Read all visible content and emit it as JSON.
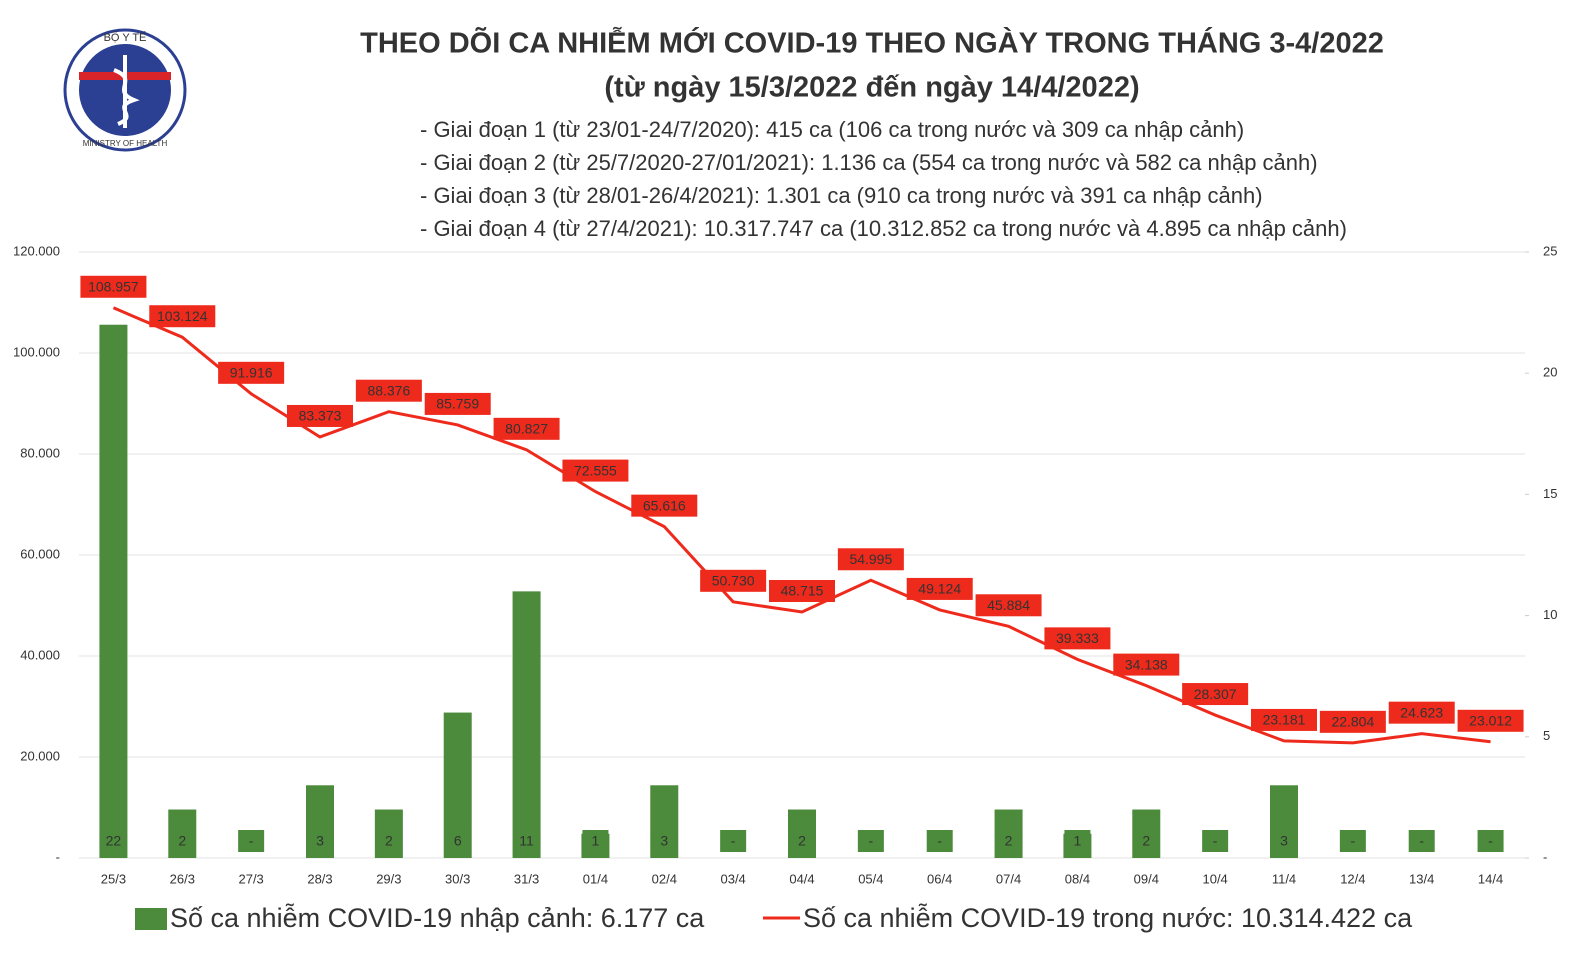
{
  "logo": {
    "top": "BỘ Y TẾ",
    "bottom": "MINISTRY OF HEALTH"
  },
  "chart_data": {
    "type": "combo",
    "title": "THEO DÕI CA NHIỄM MỚI COVID-19 THEO NGÀY TRONG THÁNG 3-4/2022",
    "subtitle": "(từ ngày 15/3/2022 đến ngày 14/4/2022)",
    "annotations": [
      "- Giai đoạn 1 (từ 23/01-24/7/2020): 415 ca (106 ca trong nước và 309 ca nhập cảnh)",
      "- Giai đoạn 2 (từ 25/7/2020-27/01/2021): 1.136 ca (554 ca trong nước và 582 ca nhập cảnh)",
      "- Giai đoạn 3 (từ 28/01-26/4/2021): 1.301 ca (910 ca trong nước và 391 ca nhập cảnh)",
      "- Giai đoạn 4 (từ 27/4/2021): 10.317.747 ca (10.312.852 ca trong nước và 4.895 ca nhập cảnh)"
    ],
    "categories": [
      "25/3",
      "26/3",
      "27/3",
      "28/3",
      "29/3",
      "30/3",
      "31/3",
      "01/4",
      "02/4",
      "03/4",
      "04/4",
      "05/4",
      "06/4",
      "07/4",
      "08/4",
      "09/4",
      "10/4",
      "11/4",
      "12/4",
      "13/4",
      "14/4"
    ],
    "series": [
      {
        "name": "Số ca nhiễm COVID-19 nhập cảnh: 6.177 ca",
        "type": "bar",
        "axis": "y2",
        "color": "#4b8b3b",
        "values": [
          22,
          2,
          0,
          3,
          2,
          6,
          11,
          1,
          3,
          0,
          2,
          0,
          0,
          2,
          1,
          2,
          0,
          3,
          0,
          0,
          0
        ],
        "value_labels": [
          "22",
          "2",
          "-",
          "3",
          "2",
          "6",
          "11",
          "1",
          "3",
          "-",
          "2",
          "-",
          "-",
          "2",
          "1",
          "2",
          "-",
          "3",
          "-",
          "-",
          "-"
        ]
      },
      {
        "name": "Số ca nhiễm COVID-19 trong nước: 10.314.422 ca",
        "type": "line",
        "color": "#ee2a1c",
        "values": [
          108957,
          103124,
          91916,
          83373,
          88376,
          85759,
          80827,
          72555,
          65616,
          50730,
          48715,
          54995,
          49124,
          45884,
          39333,
          34138,
          28307,
          23181,
          22804,
          24623,
          23012
        ],
        "value_labels": [
          "108.957",
          "103.124",
          "91.916",
          "83.373",
          "88.376",
          "85.759",
          "80.827",
          "72.555",
          "65.616",
          "50.730",
          "48.715",
          "54.995",
          "49.124",
          "45.884",
          "39.333",
          "34.138",
          "28.307",
          "23.181",
          "22.804",
          "24.623",
          "23.012"
        ]
      }
    ],
    "ylim": [
      0,
      120000
    ],
    "yticks": [
      {
        "value": 0,
        "label": "-"
      },
      {
        "value": 20000,
        "label": "20.000"
      },
      {
        "value": 40000,
        "label": "40.000"
      },
      {
        "value": 60000,
        "label": "60.000"
      },
      {
        "value": 80000,
        "label": "80.000"
      },
      {
        "value": 100000,
        "label": "100.000"
      },
      {
        "value": 120000,
        "label": "120.000"
      }
    ],
    "y2lim": [
      0,
      25
    ],
    "y2ticks": [
      {
        "value": 0,
        "label": "-"
      },
      5,
      10,
      15,
      20,
      25
    ],
    "grid": true
  }
}
